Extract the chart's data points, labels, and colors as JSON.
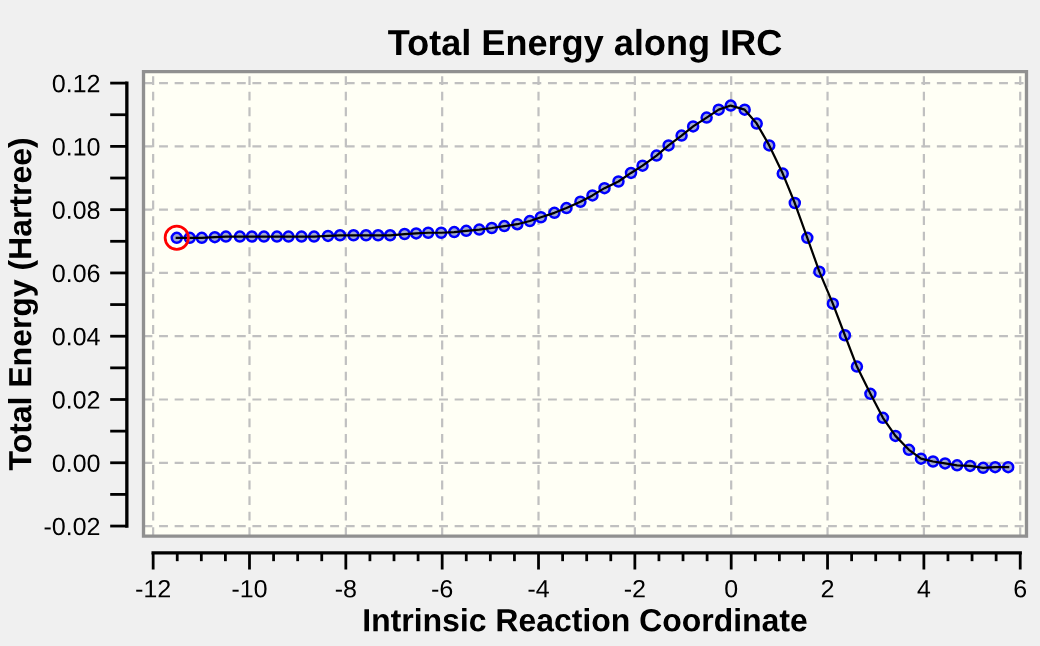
{
  "chart_data": {
    "type": "line",
    "title": "Total Energy along IRC",
    "xlabel": "Intrinsic Reaction Coordinate",
    "ylabel": "Total Energy (Hartree)",
    "xlim": [
      -12.2,
      6.13
    ],
    "ylim": [
      -0.0232,
      0.1236
    ],
    "xticks": [
      -12,
      {
        "value": -11.5,
        "label": null
      },
      {
        "value": -11,
        "label": null
      },
      {
        "value": -10.5,
        "label": null
      },
      -10,
      {
        "value": -9.5,
        "label": null
      },
      {
        "value": -9,
        "label": null
      },
      {
        "value": -8.5,
        "label": null
      },
      -8,
      {
        "value": -7.5,
        "label": null
      },
      {
        "value": -7,
        "label": null
      },
      {
        "value": -6.5,
        "label": null
      },
      -6,
      {
        "value": -5.5,
        "label": null
      },
      {
        "value": -5,
        "label": null
      },
      {
        "value": -4.5,
        "label": null
      },
      -4,
      {
        "value": -3.5,
        "label": null
      },
      {
        "value": -3,
        "label": null
      },
      {
        "value": -2.5,
        "label": null
      },
      -2,
      {
        "value": -1.5,
        "label": null
      },
      {
        "value": -1,
        "label": null
      },
      {
        "value": -0.5,
        "label": null
      },
      0,
      {
        "value": 0.5,
        "label": null
      },
      {
        "value": 1,
        "label": null
      },
      {
        "value": 1.5,
        "label": null
      },
      2,
      {
        "value": 2.5,
        "label": null
      },
      {
        "value": 3,
        "label": null
      },
      {
        "value": 3.5,
        "label": null
      },
      4,
      {
        "value": 4.5,
        "label": null
      },
      {
        "value": 5,
        "label": null
      },
      {
        "value": 5.5,
        "label": null
      },
      6
    ],
    "yticks": [
      {
        "value": -0.02,
        "label": "-0.02"
      },
      {
        "value": -0.01,
        "label": null
      },
      {
        "value": 0,
        "label": "0.00"
      },
      {
        "value": 0.01,
        "label": null
      },
      {
        "value": 0.02,
        "label": "0.02"
      },
      {
        "value": 0.03,
        "label": null
      },
      {
        "value": 0.04,
        "label": "0.04"
      },
      {
        "value": 0.05,
        "label": null
      },
      {
        "value": 0.06,
        "label": "0.06"
      },
      {
        "value": 0.07,
        "label": null
      },
      {
        "value": 0.08,
        "label": "0.08"
      },
      {
        "value": 0.09,
        "label": null
      },
      {
        "value": 0.1,
        "label": "0.10"
      },
      {
        "value": 0.11,
        "label": null
      },
      {
        "value": 0.12,
        "label": "0.12"
      }
    ],
    "grid": true,
    "marker": "circle",
    "line_style": "solid",
    "series": [
      {
        "color": "#0000ff",
        "x": [
          -11.51,
          -11.24,
          -10.99,
          -10.72,
          -10.49,
          -10.2,
          -9.95,
          -9.7,
          -9.43,
          -9.19,
          -8.92,
          -8.66,
          -8.37,
          -8.12,
          -7.84,
          -7.58,
          -7.33,
          -7.08,
          -6.78,
          -6.54,
          -6.29,
          -6.02,
          -5.75,
          -5.5,
          -5.23,
          -4.97,
          -4.71,
          -4.44,
          -4.18,
          -3.95,
          -3.67,
          -3.42,
          -3.13,
          -2.88,
          -2.63,
          -2.34,
          -2.08,
          -1.84,
          -1.55,
          -1.3,
          -1.03,
          -0.79,
          -0.51,
          -0.26,
          -0.01,
          0.28,
          0.53,
          0.79,
          1.07,
          1.32,
          1.58,
          1.83,
          2.11,
          2.36,
          2.61,
          2.89,
          3.15,
          3.41,
          3.69,
          3.94,
          4.19,
          4.44,
          4.69,
          4.96,
          5.23,
          5.48,
          5.75
        ],
        "values": [
          0.0711,
          0.0711,
          0.0711,
          0.0713,
          0.0715,
          0.0715,
          0.0715,
          0.0715,
          0.0715,
          0.0715,
          0.0715,
          0.0715,
          0.0717,
          0.0719,
          0.0719,
          0.0719,
          0.0719,
          0.0719,
          0.0723,
          0.0725,
          0.0727,
          0.0727,
          0.0729,
          0.0733,
          0.0737,
          0.0742,
          0.0748,
          0.0754,
          0.0764,
          0.0776,
          0.079,
          0.0805,
          0.0825,
          0.0845,
          0.0868,
          0.0889,
          0.0916,
          0.0939,
          0.0971,
          0.1003,
          0.1034,
          0.1063,
          0.1091,
          0.1116,
          0.1129,
          0.1116,
          0.1072,
          0.1003,
          0.0914,
          0.0821,
          0.0711,
          0.0604,
          0.0503,
          0.0403,
          0.0304,
          0.0218,
          0.0142,
          0.0085,
          0.0041,
          0.0013,
          0.0004,
          -0.0002,
          -0.0008,
          -0.001,
          -0.0016,
          -0.0014,
          -0.0014
        ]
      },
      {
        "type": "scatter",
        "color": "#ff0000",
        "x": [
          -11.51
        ],
        "values": [
          0.0711
        ]
      }
    ]
  }
}
